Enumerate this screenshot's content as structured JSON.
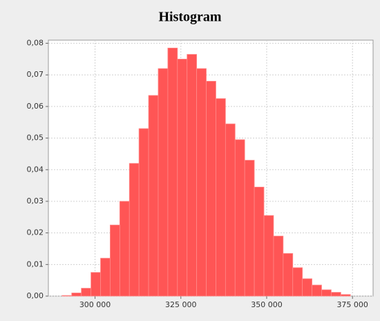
{
  "chart_data": {
    "type": "histogram",
    "title": "Histogram",
    "bins": [
      290400,
      293200,
      296000,
      298800,
      301600,
      304400,
      307200,
      310000,
      312800,
      315600,
      318400,
      321200,
      324000,
      326800,
      329600,
      332400,
      335200,
      338000,
      340800,
      343600,
      346400,
      349200,
      352000,
      354800,
      357600,
      360400,
      363200,
      366000,
      368800,
      371600,
      374400
    ],
    "values": [
      0.0002,
      0.001,
      0.0025,
      0.0075,
      0.012,
      0.0225,
      0.03,
      0.042,
      0.053,
      0.0635,
      0.072,
      0.0785,
      0.075,
      0.0765,
      0.072,
      0.068,
      0.0625,
      0.0545,
      0.0495,
      0.043,
      0.0345,
      0.0255,
      0.019,
      0.0135,
      0.009,
      0.0055,
      0.0035,
      0.002,
      0.0012,
      0.0005
    ],
    "color": "#ff5555",
    "xlim": [
      286400,
      381000
    ],
    "xticks": [
      {
        "value": 300000,
        "label": "300 000"
      },
      {
        "value": 325000,
        "label": "325 000"
      },
      {
        "value": 350000,
        "label": "350 000"
      },
      {
        "value": 375000,
        "label": "375 000"
      }
    ],
    "ylim": [
      0,
      0.081
    ],
    "yticks": [
      {
        "value": 0,
        "label": "0,00"
      },
      {
        "value": 0.01,
        "label": "0,01"
      },
      {
        "value": 0.02,
        "label": "0,02"
      },
      {
        "value": 0.03,
        "label": "0,03"
      },
      {
        "value": 0.04,
        "label": "0,04"
      },
      {
        "value": 0.05,
        "label": "0,05"
      },
      {
        "value": 0.06,
        "label": "0,06"
      },
      {
        "value": 0.07,
        "label": "0,07"
      },
      {
        "value": 0.08,
        "label": "0,08"
      }
    ],
    "grid": true
  }
}
